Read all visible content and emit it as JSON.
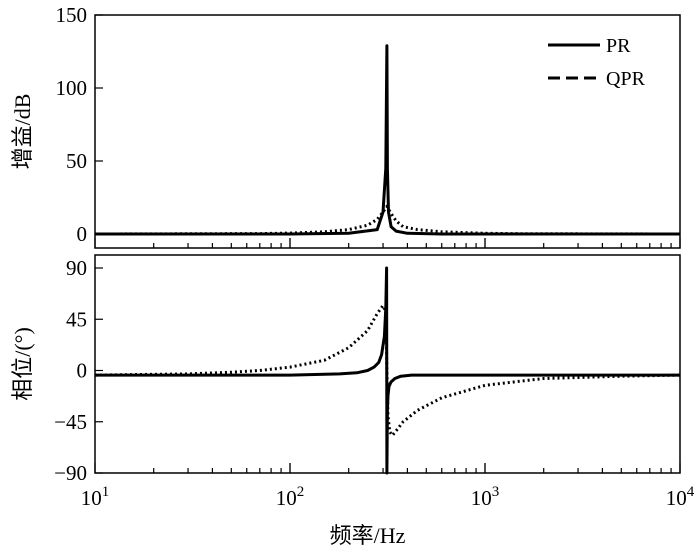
{
  "chart_data": [
    {
      "type": "line",
      "panel": "magnitude",
      "ylabel": "增益/dB",
      "xlabel": "",
      "xscale": "log",
      "xlim": [
        10,
        10000
      ],
      "ylim": [
        -5,
        150
      ],
      "yticks": [
        0,
        50,
        100,
        150
      ],
      "yticklabels": [
        "0",
        "50",
        "100",
        "150"
      ],
      "legend": {
        "placement": "top-right",
        "entries": [
          "PR",
          "QPR"
        ]
      },
      "series": [
        {
          "name": "PR",
          "style": "solid",
          "x": [
            10,
            50,
            100,
            200,
            280,
            300,
            310,
            314,
            316,
            320,
            330,
            350,
            400,
            600,
            1000,
            3000,
            10000
          ],
          "y": [
            0,
            0,
            0,
            0.5,
            3,
            15,
            45,
            129,
            45,
            15,
            5,
            2,
            0.5,
            0,
            0,
            0,
            0
          ]
        },
        {
          "name": "QPR",
          "style": "dotted",
          "x": [
            10,
            70,
            100,
            150,
            200,
            250,
            280,
            300,
            314,
            330,
            350,
            380,
            450,
            600,
            1000,
            1500,
            10000
          ],
          "y": [
            0,
            0.3,
            0.6,
            1.5,
            3,
            6,
            10,
            15,
            19,
            14,
            9,
            5,
            3,
            1.5,
            0.5,
            0.2,
            0
          ]
        }
      ]
    },
    {
      "type": "line",
      "panel": "phase",
      "ylabel": "相位/(°)",
      "xlabel": "频率/Hz",
      "xscale": "log",
      "xlim": [
        10,
        10000
      ],
      "ylim": [
        -90,
        90
      ],
      "yticks": [
        -90,
        -45,
        0,
        45,
        90
      ],
      "yticklabels": [
        "−90",
        "−45",
        "0",
        "45",
        "90"
      ],
      "xticks": [
        10,
        100,
        1000,
        10000
      ],
      "xticklabels": [
        {
          "base": "10",
          "exp": "1"
        },
        {
          "base": "10",
          "exp": "2"
        },
        {
          "base": "10",
          "exp": "3"
        },
        {
          "base": "10",
          "exp": "4"
        }
      ],
      "series": [
        {
          "name": "PR",
          "style": "solid",
          "x": [
            10,
            100,
            180,
            220,
            250,
            270,
            285,
            295,
            305,
            310,
            313,
            314,
            315,
            316,
            318,
            322,
            330,
            345,
            370,
            420,
            500,
            1000,
            10000
          ],
          "y": [
            -4,
            -4,
            -3,
            -2,
            0,
            3,
            7,
            14,
            30,
            55,
            90,
            -90,
            -55,
            -35,
            -22,
            -14,
            -10,
            -7,
            -5,
            -4,
            -4,
            -4,
            -4
          ]
        },
        {
          "name": "QPR",
          "style": "dotted",
          "x": [
            10,
            30,
            50,
            70,
            100,
            150,
            200,
            250,
            280,
            300,
            310,
            314,
            318,
            325,
            335,
            350,
            380,
            450,
            600,
            1000,
            2000,
            5000,
            10000
          ],
          "y": [
            -4,
            -3,
            -1.5,
            0,
            3,
            9,
            20,
            35,
            50,
            57,
            52,
            0,
            -40,
            -54,
            -57,
            -53,
            -45,
            -35,
            -24,
            -13,
            -7,
            -5,
            -4
          ]
        }
      ]
    }
  ]
}
